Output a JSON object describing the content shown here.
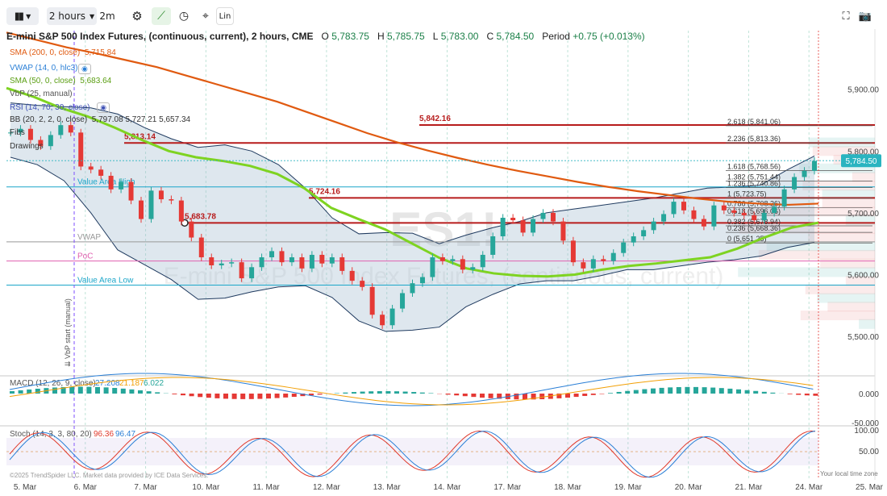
{
  "toolbar": {
    "timeframe": "2 hours",
    "interval": "2m",
    "lin_label": "Lin"
  },
  "header": {
    "title": "E-mini S&P 500 Index Futures, (continuous, current), 2 hours, CME",
    "o_label": "O",
    "o": "5,783.75",
    "h_label": "H",
    "h": "5,785.75",
    "l_label": "L",
    "l": "5,783.00",
    "c_label": "C",
    "c": "5,784.50",
    "period_label": "Period",
    "period": "+0.75 (+0.013%)"
  },
  "indicators": [
    {
      "name": "SMA (200, 0, close)",
      "value": "5,715.84",
      "color": "#e05a10"
    },
    {
      "name": "VWAP (14, 0, hlc3)",
      "value": "",
      "color": "#2a7fd6"
    },
    {
      "name": "SMA (50, 0, close)",
      "value": "5,683.64",
      "color": "#7ed321"
    },
    {
      "name": "VbP (25, manual)",
      "value": "",
      "color": "#555555"
    },
    {
      "name": "RSI (14, 70, 30, close)",
      "value": "",
      "color": "#3f51b5"
    },
    {
      "name": "BB (20, 2, 2, 0, close)",
      "value": "5,797.08  5,727.21  5,657.34",
      "color": "#333333"
    },
    {
      "name": "Fibs",
      "value": "",
      "color": "#333333"
    },
    {
      "name": "Drawings",
      "value": "",
      "color": "#333333"
    }
  ],
  "watermark": {
    "symbol": "ES1!",
    "name": "E-mini S&P 500 Index Futures, (continuous, current)"
  },
  "chart_data": [
    {
      "type": "line",
      "title": "E-mini S&P 500 Index Futures, (continuous, current), 2 hours, CME",
      "x_ticks": [
        "5. Mar",
        "6. Mar",
        "7. Mar",
        "10. Mar",
        "11. Mar",
        "12. Mar",
        "13. Mar",
        "14. Mar",
        "17. Mar",
        "18. Mar",
        "19. Mar",
        "20. Mar",
        "21. Mar",
        "24. Mar",
        "25. Mar"
      ],
      "y_ticks": [
        "5,900.00",
        "5,800.00",
        "5,700.00",
        "5,600.00",
        "5,500.00"
      ],
      "y_tick_values": [
        5900,
        5800,
        5700,
        5600,
        5500
      ],
      "ylim": [
        5440,
        5995
      ],
      "last_price": "5,784.50",
      "last_value": 5784.5,
      "series": [
        {
          "name": "Price",
          "color": "#2ca58d",
          "values": [
            5830,
            5836,
            5818,
            5808,
            5826,
            5842,
            5830,
            5775,
            5770,
            5760,
            5738,
            5750,
            5720,
            5690,
            5736,
            5722,
            5720,
            5686,
            5660,
            5628,
            5615,
            5618,
            5620,
            5594,
            5612,
            5628,
            5638,
            5620,
            5628,
            5610,
            5632,
            5618,
            5628,
            5606,
            5590,
            5580,
            5535,
            5518,
            5545,
            5570,
            5586,
            5596,
            5628,
            5622,
            5625,
            5608,
            5612,
            5632,
            5662,
            5692,
            5688,
            5668,
            5690,
            5700,
            5686,
            5655,
            5620,
            5610,
            5625,
            5622,
            5635,
            5652,
            5662,
            5672,
            5686,
            5698,
            5718,
            5704,
            5690,
            5678,
            5712,
            5704,
            5700,
            5696,
            5688,
            5700,
            5710,
            5738,
            5758,
            5768,
            5784
          ]
        },
        {
          "name": "SMA (200, 0, close)",
          "color": "#e05a10",
          "values": [
            5992,
            5980,
            5968,
            5958,
            5947,
            5936,
            5922,
            5908,
            5894,
            5880,
            5863,
            5846,
            5829,
            5814,
            5801,
            5789,
            5778,
            5768,
            5759,
            5750,
            5742,
            5735,
            5729,
            5723,
            5718,
            5715,
            5713,
            5715
          ]
        },
        {
          "name": "SMA (50, 0, close)",
          "color": "#7ed321",
          "values": [
            5902,
            5888,
            5870,
            5856,
            5838,
            5818,
            5800,
            5790,
            5784,
            5776,
            5763,
            5740,
            5708,
            5690,
            5673,
            5650,
            5627,
            5610,
            5602,
            5598,
            5597,
            5600,
            5608,
            5614,
            5618,
            5623,
            5628,
            5642,
            5660,
            5676,
            5684
          ]
        },
        {
          "name": "BB upper",
          "color": "#1f3a5f",
          "values": [
            5878,
            5874,
            5872,
            5870,
            5860,
            5838,
            5820,
            5806,
            5810,
            5800,
            5778,
            5740,
            5692,
            5666,
            5668,
            5667,
            5650,
            5664,
            5676,
            5686,
            5700,
            5706,
            5712,
            5718,
            5724,
            5732,
            5740,
            5742,
            5745,
            5770,
            5792
          ]
        },
        {
          "name": "BB lower",
          "color": "#1f3a5f",
          "values": [
            5790,
            5778,
            5752,
            5700,
            5640,
            5616,
            5592,
            5560,
            5562,
            5572,
            5580,
            5582,
            5563,
            5525,
            5508,
            5510,
            5515,
            5548,
            5568,
            5585,
            5590,
            5590,
            5598,
            5608,
            5608,
            5614,
            5620,
            5624,
            5630,
            5644,
            5652
          ]
        }
      ]
    },
    {
      "type": "bar",
      "title": "MACD (12, 26, 9, close)",
      "values_text": [
        "27.208",
        "21.187",
        "6.022"
      ],
      "colors": [
        "#2a7fd6",
        "#f29f05",
        "#26a69a"
      ],
      "y_ticks": [
        "0.000",
        "-50.000"
      ]
    },
    {
      "type": "line",
      "title": "Stoch (14, 3, 3, 80, 20)",
      "values_text": [
        "96.36",
        "96.47"
      ],
      "colors": [
        "#e0392b",
        "#2a7fd6"
      ],
      "y_ticks": [
        "100.00",
        "50.00"
      ],
      "ylim": [
        0,
        100
      ]
    }
  ],
  "levels": [
    {
      "label": "5,842.16",
      "value": 5842.16,
      "color": "#b71c1c"
    },
    {
      "label": "5,813.14",
      "value": 5813.14,
      "color": "#b71c1c"
    },
    {
      "label": "5,724.16",
      "value": 5724.16,
      "color": "#b71c1c"
    },
    {
      "label": "5,683.78",
      "value": 5683.78,
      "color": "#b71c1c"
    }
  ],
  "fibs": [
    {
      "label": "2.618 (5,841.06)",
      "value": 5841.06
    },
    {
      "label": "2.236 (5,813.36)",
      "value": 5813.36
    },
    {
      "label": "1.618 (5,768.56)",
      "value": 5768.56
    },
    {
      "label": "1.382 (5,751.44)",
      "value": 5751.44
    },
    {
      "label": "1.236 (5,740.86)",
      "value": 5740.86
    },
    {
      "label": "1 (5,723.75)",
      "value": 5723.75
    },
    {
      "label": "0.786 (5,708.26)",
      "value": 5708.26
    },
    {
      "label": "0.618 (5,696.06)",
      "value": 5696.06
    },
    {
      "label": "0.382 (5,678.94)",
      "value": 5678.94
    },
    {
      "label": "0.236 (5,668.36)",
      "value": 5668.36
    },
    {
      "label": "0 (5,651.25)",
      "value": 5651.25
    }
  ],
  "vbp_lines": [
    {
      "label": "Value Area High",
      "value": 5742,
      "color": "#1ba6c9"
    },
    {
      "label": "VWAP",
      "value": 5653,
      "color": "#999999"
    },
    {
      "label": "PoC",
      "value": 5622,
      "color": "#e060b0"
    },
    {
      "label": "Value Area Low",
      "value": 5583,
      "color": "#1ba6c9"
    }
  ],
  "vbp_start_label": "⇊ VbP start (manual)",
  "footer_left": "©2025 TrendSpider LLC. Market data provided by ICE Data Services.",
  "footer_right": "Your local time zone"
}
